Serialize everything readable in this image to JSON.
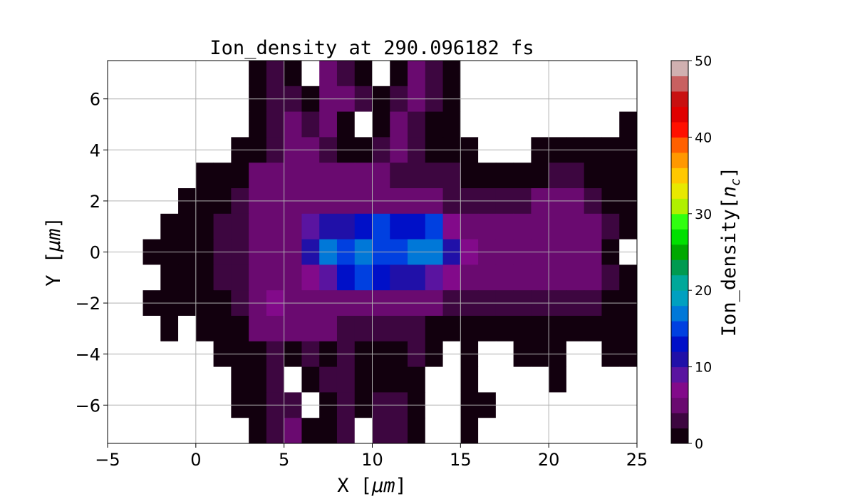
{
  "chart_data": {
    "type": "heatmap",
    "title": "Ion_density at 290.096182 fs",
    "xlabel": "X [μm]",
    "xlabel_parts": [
      "X [",
      "μm",
      "]"
    ],
    "ylabel": "Y [μm]",
    "ylabel_parts": [
      "Y [",
      "μm",
      "]"
    ],
    "colorbar_label": "Ion_density[n_c]",
    "colorbar_label_parts": [
      "Ion_density[",
      "n",
      "c",
      "]"
    ],
    "xlim": [
      -5,
      25
    ],
    "ylim": [
      -7.5,
      7.5
    ],
    "xticks": [
      -5,
      0,
      5,
      10,
      15,
      20,
      25
    ],
    "xtick_labels": [
      "−5",
      "0",
      "5",
      "10",
      "15",
      "20",
      "25"
    ],
    "yticks": [
      -6,
      -4,
      -2,
      0,
      2,
      4,
      6
    ],
    "ytick_labels": [
      "−6",
      "−4",
      "−2",
      "0",
      "2",
      "4",
      "6"
    ],
    "grid": true,
    "colorbar": {
      "range": [
        0,
        50
      ],
      "ticks": [
        0,
        10,
        20,
        30,
        40,
        50
      ],
      "tick_labels": [
        "0",
        "10",
        "20",
        "30",
        "40",
        "50"
      ],
      "colors": [
        "#12000e",
        "#3d0640",
        "#6a0a70",
        "#820a8a",
        "#5a14a0",
        "#2010a8",
        "#0010c8",
        "#0040e0",
        "#0078d8",
        "#00a0c0",
        "#00a89a",
        "#009a50",
        "#00a800",
        "#00e000",
        "#30ff10",
        "#b0f000",
        "#e8e800",
        "#ffc800",
        "#ff9800",
        "#ff6000",
        "#ff1000",
        "#e00000",
        "#c81010",
        "#c86060",
        "#d0b0b0"
      ],
      "below_range_color": "#ffffff"
    },
    "x_centers": [
      -4.5,
      -3.5,
      -2.5,
      -1.5,
      -0.5,
      0.5,
      1.5,
      2.5,
      3.5,
      4.5,
      5.5,
      6.5,
      7.5,
      8.5,
      9.5,
      10.5,
      11.5,
      12.5,
      13.5,
      14.5,
      15.5,
      16.5,
      17.5,
      18.5,
      19.5,
      20.5,
      21.5,
      22.5,
      23.5,
      24.5
    ],
    "y_centers": [
      7,
      6,
      5,
      4,
      3,
      2,
      1,
      0,
      -1,
      -2,
      -3,
      -4,
      -5,
      -6,
      -7
    ],
    "values": [
      [
        null,
        null,
        null,
        null,
        null,
        null,
        null,
        null,
        1,
        3,
        1,
        null,
        4,
        3,
        1,
        null,
        1,
        4,
        3,
        1,
        null,
        null,
        null,
        null,
        null,
        null,
        null,
        null,
        null,
        null
      ],
      [
        null,
        null,
        null,
        null,
        null,
        null,
        null,
        null,
        1,
        3,
        3,
        1,
        4,
        4,
        3,
        1,
        3,
        4,
        3,
        1,
        null,
        null,
        null,
        null,
        null,
        null,
        null,
        null,
        null,
        null
      ],
      [
        null,
        null,
        null,
        null,
        null,
        null,
        null,
        null,
        1,
        3,
        4,
        3,
        4,
        1,
        null,
        1,
        4,
        3,
        1,
        1,
        null,
        null,
        null,
        null,
        null,
        null,
        null,
        null,
        null,
        1
      ],
      [
        null,
        null,
        null,
        null,
        null,
        null,
        null,
        1,
        1,
        3,
        4,
        4,
        3,
        1,
        1,
        3,
        4,
        3,
        1,
        1,
        1,
        null,
        null,
        null,
        1,
        1,
        1,
        1,
        1,
        1
      ],
      [
        null,
        null,
        null,
        null,
        null,
        1,
        1,
        1,
        4,
        4,
        4,
        4,
        4,
        4,
        4,
        4,
        3,
        3,
        3,
        3,
        1,
        1,
        1,
        1,
        1,
        3,
        3,
        1,
        1,
        1
      ],
      [
        null,
        null,
        null,
        null,
        1,
        1,
        1,
        3,
        4,
        4,
        4,
        4,
        4,
        4,
        4,
        4,
        4,
        4,
        4,
        3,
        3,
        3,
        3,
        3,
        4,
        4,
        4,
        3,
        1,
        1
      ],
      [
        null,
        null,
        null,
        1,
        1,
        1,
        3,
        3,
        4,
        4,
        4,
        8,
        10,
        10,
        12,
        14,
        12,
        12,
        14,
        6,
        4,
        4,
        4,
        4,
        4,
        4,
        4,
        4,
        3,
        1
      ],
      [
        null,
        null,
        1,
        1,
        1,
        1,
        3,
        3,
        4,
        4,
        4,
        10,
        16,
        14,
        16,
        14,
        14,
        16,
        16,
        10,
        6,
        4,
        4,
        4,
        4,
        4,
        4,
        4,
        1,
        null
      ],
      [
        null,
        null,
        null,
        1,
        1,
        1,
        3,
        3,
        4,
        4,
        4,
        6,
        8,
        12,
        14,
        12,
        10,
        10,
        8,
        6,
        4,
        4,
        4,
        4,
        4,
        4,
        4,
        4,
        3,
        1
      ],
      [
        null,
        null,
        1,
        1,
        1,
        1,
        1,
        3,
        4,
        6,
        4,
        4,
        4,
        4,
        4,
        4,
        4,
        4,
        4,
        3,
        3,
        3,
        3,
        3,
        3,
        3,
        3,
        3,
        1,
        1
      ],
      [
        null,
        null,
        null,
        1,
        null,
        1,
        1,
        1,
        4,
        4,
        4,
        4,
        4,
        3,
        3,
        3,
        3,
        3,
        1,
        1,
        1,
        1,
        1,
        1,
        1,
        1,
        1,
        1,
        1,
        1
      ],
      [
        null,
        null,
        null,
        null,
        null,
        null,
        1,
        1,
        1,
        3,
        1,
        3,
        1,
        3,
        1,
        1,
        1,
        3,
        1,
        null,
        1,
        null,
        null,
        1,
        1,
        1,
        null,
        null,
        1,
        1
      ],
      [
        null,
        null,
        null,
        null,
        null,
        null,
        null,
        1,
        1,
        3,
        null,
        1,
        3,
        3,
        1,
        1,
        1,
        1,
        null,
        null,
        1,
        null,
        null,
        null,
        null,
        1,
        null,
        null,
        null,
        null
      ],
      [
        null,
        null,
        null,
        null,
        null,
        null,
        null,
        1,
        1,
        3,
        3,
        null,
        1,
        3,
        1,
        3,
        3,
        1,
        null,
        null,
        1,
        1,
        null,
        null,
        null,
        null,
        null,
        null,
        null,
        null
      ],
      [
        null,
        null,
        null,
        null,
        null,
        null,
        null,
        null,
        1,
        3,
        4,
        1,
        1,
        3,
        null,
        3,
        3,
        1,
        null,
        null,
        1,
        null,
        null,
        null,
        null,
        null,
        null,
        null,
        null,
        null
      ]
    ]
  }
}
